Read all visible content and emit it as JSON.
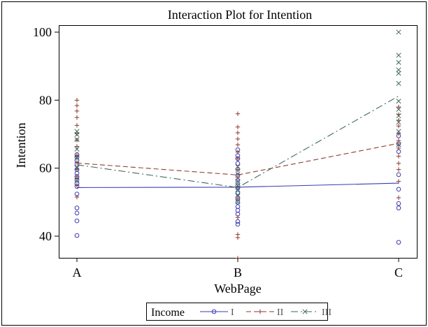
{
  "chart_data": {
    "type": "line",
    "title": "Interaction Plot for Intention",
    "xlabel": "WebPage",
    "ylabel": "Intention",
    "categories": [
      "A",
      "B",
      "C"
    ],
    "ylim": [
      32,
      102
    ],
    "yticks": [
      40,
      60,
      80,
      100
    ],
    "grid": false,
    "legend_position": "bottom",
    "legend_title": "Income",
    "series": [
      {
        "name": "I",
        "marker": "circle",
        "color": "#3b3bb3",
        "dash": "solid",
        "means": [
          54.3,
          54.4,
          55.6
        ],
        "points": [
          [
            40.2,
            44.5,
            46.8,
            48.3,
            52.4,
            54.6,
            55.4,
            56.6,
            57.5,
            58.5,
            59.6,
            61.1,
            62.3,
            63.2,
            64.0
          ],
          [
            43.5,
            44.3,
            46.5,
            47.6,
            48.7,
            50.0,
            51.2,
            52.6,
            54.1,
            54.9,
            56.4,
            57.9,
            59.7,
            61.4,
            62.8,
            63.7,
            65.4
          ],
          [
            38.2,
            48.3,
            49.6,
            53.8,
            58.1,
            64.9,
            67.2,
            69.5
          ]
        ]
      },
      {
        "name": "II",
        "marker": "plus",
        "color": "#8b3a2e",
        "dash": "dashed",
        "means": [
          61.5,
          58.0,
          67.3
        ],
        "points": [
          [
            51.5,
            55.0,
            57.6,
            59.6,
            61.7,
            63.8,
            66.4,
            68.3,
            70.1,
            72.6,
            74.9,
            76.8,
            78.4,
            80.0
          ],
          [
            33.5,
            39.6,
            40.5,
            45.5,
            51.2,
            54.6,
            57.3,
            59.6,
            62.8,
            64.7,
            66.9,
            68.6,
            70.4,
            72.1,
            76.0
          ],
          [
            51.3,
            56.1,
            59.6,
            61.4,
            63.5,
            65.9,
            68.1,
            70.2,
            72.4,
            74.1,
            75.8,
            78.0
          ]
        ]
      },
      {
        "name": "III",
        "marker": "x",
        "color": "#3f6b5c",
        "dash": "dashdot",
        "means": [
          61.0,
          54.3,
          81.2
        ],
        "points": [
          [
            56.5,
            60.1,
            63.0,
            65.6,
            68.4,
            69.9,
            70.8
          ],
          [
            50.1,
            52.1,
            53.7,
            54.9,
            56.2,
            58.3,
            60.4
          ],
          [
            66.9,
            70.8,
            73.5,
            75.4,
            77.3,
            79.7,
            84.9,
            87.9,
            88.9,
            91.1,
            93.2,
            100.0
          ]
        ]
      }
    ]
  }
}
